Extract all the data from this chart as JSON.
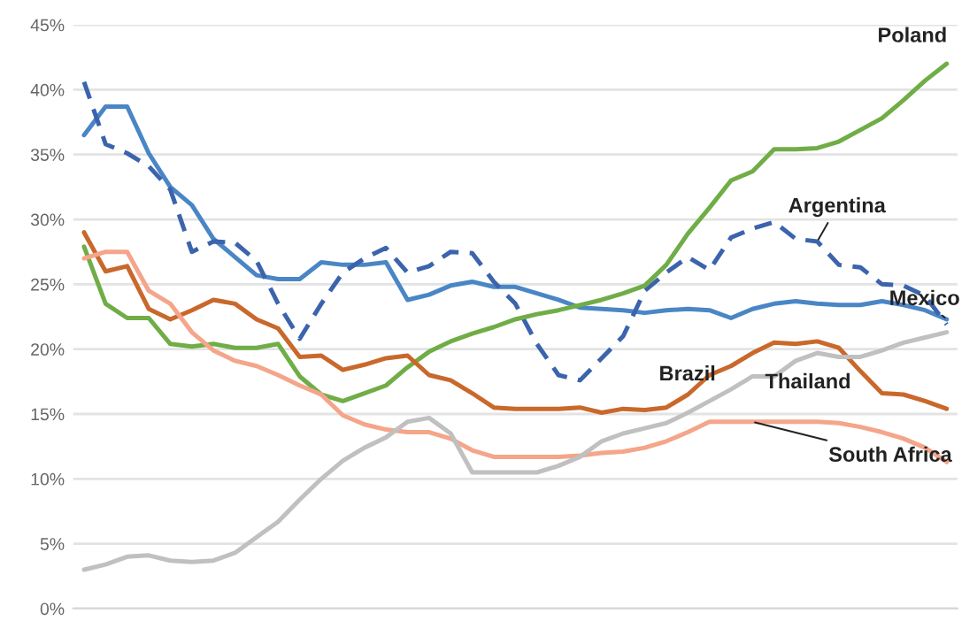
{
  "chart_data": {
    "type": "line",
    "categories": [
      null,
      null,
      null,
      null,
      null,
      null,
      null,
      null,
      null,
      null,
      null,
      null,
      null,
      null,
      null,
      null,
      null,
      null,
      null,
      null,
      null,
      null,
      null,
      null,
      null,
      null,
      null,
      null,
      null,
      null,
      null,
      null,
      null,
      null,
      null,
      null,
      null,
      null,
      null,
      null,
      null
    ],
    "ylim": [
      0,
      45
    ],
    "yticks": [
      {
        "value": 0,
        "label": "0%"
      },
      {
        "value": 5,
        "label": "5%"
      },
      {
        "value": 10,
        "label": "10%"
      },
      {
        "value": 15,
        "label": "15%"
      },
      {
        "value": 20,
        "label": "20%"
      },
      {
        "value": 25,
        "label": "25%"
      },
      {
        "value": 30,
        "label": "30%"
      },
      {
        "value": 35,
        "label": "35%"
      },
      {
        "value": 40,
        "label": "40%"
      },
      {
        "value": 45,
        "label": "45%"
      }
    ],
    "grid": "y",
    "legend": false,
    "tick_labels": "y",
    "series": [
      {
        "name": "Mexico",
        "color": "#4a86c5",
        "line_style": "solid",
        "values": [
          36.5,
          38.7,
          38.7,
          35.1,
          32.5,
          31.1,
          28.5,
          27.1,
          25.7,
          25.4,
          25.4,
          26.7,
          26.5,
          26.5,
          26.7,
          23.8,
          24.2,
          24.9,
          25.2,
          24.8,
          24.8,
          24.3,
          23.8,
          23.2,
          23.1,
          23.0,
          22.8,
          23.0,
          23.1,
          23.0,
          22.4,
          23.1,
          23.5,
          23.7,
          23.5,
          23.4,
          23.4,
          23.7,
          23.4,
          23.0,
          22.3
        ]
      },
      {
        "name": "Argentina",
        "color": "#3c64ac",
        "line_style": "dashed",
        "values": [
          40.6,
          35.8,
          35.1,
          34.1,
          32.3,
          27.5,
          28.3,
          28.2,
          26.8,
          23.5,
          20.8,
          23.5,
          25.9,
          27.0,
          27.8,
          25.9,
          26.4,
          27.5,
          27.4,
          25.2,
          23.5,
          20.4,
          18.0,
          17.6,
          19.3,
          21.0,
          24.5,
          25.9,
          27.1,
          26.1,
          28.6,
          29.3,
          29.8,
          28.5,
          28.3,
          26.5,
          26.3,
          25.0,
          24.9,
          24.1,
          21.9
        ]
      },
      {
        "name": "Poland",
        "color": "#70ad47",
        "line_style": "solid",
        "values": [
          27.9,
          23.5,
          22.4,
          22.4,
          20.4,
          20.2,
          20.4,
          20.1,
          20.1,
          20.4,
          17.9,
          16.5,
          16.0,
          16.6,
          17.2,
          18.6,
          19.8,
          20.6,
          21.2,
          21.7,
          22.3,
          22.7,
          23.0,
          23.4,
          23.8,
          24.3,
          24.9,
          26.5,
          28.9,
          30.9,
          33.0,
          33.7,
          35.4,
          35.4,
          35.5,
          36.0,
          36.9,
          37.8,
          39.2,
          40.7,
          42.0
        ]
      },
      {
        "name": "Brazil",
        "color": "#c9682b",
        "line_style": "solid",
        "values": [
          29.0,
          26.0,
          26.4,
          23.1,
          22.3,
          23.0,
          23.8,
          23.5,
          22.3,
          21.6,
          19.4,
          19.5,
          18.4,
          18.8,
          19.3,
          19.5,
          18.0,
          17.6,
          16.6,
          15.5,
          15.4,
          15.4,
          15.4,
          15.5,
          15.1,
          15.4,
          15.3,
          15.5,
          16.5,
          18.0,
          18.7,
          19.7,
          20.5,
          20.4,
          20.6,
          20.1,
          18.3,
          16.6,
          16.5,
          16.0,
          15.4
        ]
      },
      {
        "name": "South Africa",
        "color": "#f4a58a",
        "line_style": "solid",
        "values": [
          27.0,
          27.5,
          27.5,
          24.5,
          23.5,
          21.3,
          19.9,
          19.1,
          18.7,
          18.0,
          17.2,
          16.5,
          14.9,
          14.2,
          13.8,
          13.6,
          13.6,
          13.1,
          12.2,
          11.7,
          11.7,
          11.7,
          11.7,
          11.8,
          12.0,
          12.1,
          12.4,
          12.9,
          13.6,
          14.4,
          14.4,
          14.4,
          14.4,
          14.4,
          14.4,
          14.3,
          14.0,
          13.6,
          13.1,
          12.4,
          11.3
        ]
      },
      {
        "name": "Thailand",
        "color": "#c0c0c0",
        "line_style": "solid",
        "values": [
          3.0,
          3.4,
          4.0,
          4.1,
          3.7,
          3.6,
          3.7,
          4.3,
          5.5,
          6.7,
          8.4,
          10.0,
          11.4,
          12.4,
          13.2,
          14.4,
          14.7,
          13.5,
          10.5,
          10.5,
          10.5,
          10.5,
          11.0,
          11.7,
          12.9,
          13.5,
          13.9,
          14.3,
          15.1,
          16.0,
          16.9,
          17.9,
          17.9,
          19.1,
          19.7,
          19.4,
          19.4,
          19.9,
          20.5,
          20.9,
          21.3
        ]
      }
    ]
  }
}
